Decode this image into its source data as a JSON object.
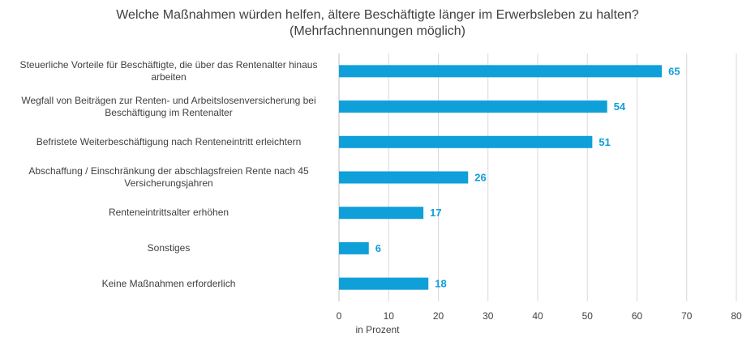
{
  "chart_data": {
    "type": "bar",
    "orientation": "horizontal",
    "title": "Welche Maßnahmen würden helfen, ältere Beschäftigte länger im Erwerbsleben zu halten?",
    "subtitle": "(Mehrfachnennungen möglich)",
    "categories": [
      "Steuerliche Vorteile für Beschäftigte, die über das Rentenalter hinaus arbeiten",
      "Wegfall von Beiträgen zur Renten- und Arbeitslosenversicherung bei Beschäftigung im Rentenalter",
      "Befristete Weiterbeschäftigung nach Renteneintritt erleichtern",
      "Abschaffung / Einschränkung der abschlagsfreien Rente nach 45 Versicherungsjahren",
      "Renteneintrittsalter erhöhen",
      "Sonstiges",
      "Keine Maßnahmen erforderlich"
    ],
    "values": [
      65,
      54,
      51,
      26,
      17,
      6,
      18
    ],
    "xlabel": "in Prozent",
    "xlim": [
      0,
      80
    ],
    "xticks": [
      "0",
      "10",
      "20",
      "30",
      "40",
      "50",
      "60",
      "70",
      "80"
    ],
    "grid": "vertical",
    "colors": {
      "bar": "#0f9fd9",
      "value_label": "#0f9fd9",
      "grid": "#d9d9d9",
      "text": "#404040"
    }
  }
}
